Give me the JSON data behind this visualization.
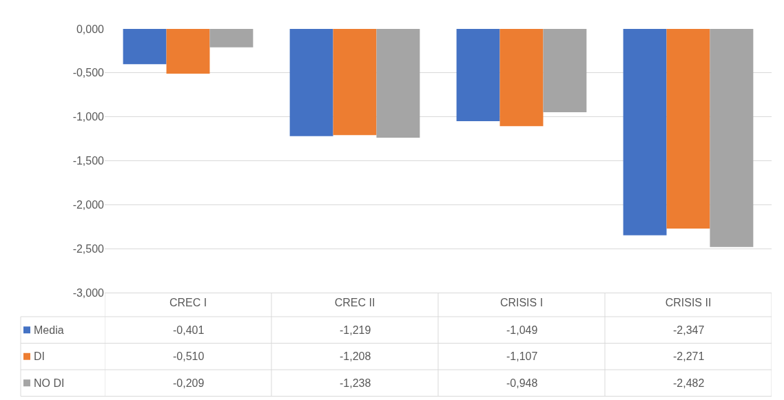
{
  "chart_data": {
    "type": "bar",
    "categories": [
      "CREC I",
      "CREC II",
      "CRISIS I",
      "CRISIS II"
    ],
    "series": [
      {
        "name": "Media",
        "color": "#4472c4",
        "values": [
          -0.401,
          -1.219,
          -1.049,
          -2.347
        ],
        "value_labels": [
          "-0,401",
          "-1,219",
          "-1,049",
          "-2,347"
        ]
      },
      {
        "name": "DI",
        "color": "#ed7d31",
        "values": [
          -0.51,
          -1.208,
          -1.107,
          -2.271
        ],
        "value_labels": [
          "-0,510",
          "-1,208",
          "-1,107",
          "-2,271"
        ]
      },
      {
        "name": "NO DI",
        "color": "#a5a5a5",
        "values": [
          -0.209,
          -1.238,
          -0.948,
          -2.482
        ],
        "value_labels": [
          "-0,209",
          "-1,238",
          "-0,948",
          "-2,482"
        ]
      }
    ],
    "ylim": [
      -3,
      0
    ],
    "yticks": [
      {
        "value": 0,
        "label": "0,000"
      },
      {
        "value": -0.5,
        "label": "-0,500"
      },
      {
        "value": -1,
        "label": "-1,000"
      },
      {
        "value": -1.5,
        "label": "-1,500"
      },
      {
        "value": -2,
        "label": "-2,000"
      },
      {
        "value": -2.5,
        "label": "-2,500"
      },
      {
        "value": -3,
        "label": "-3,000"
      }
    ],
    "grid": "y",
    "legend": "bottom"
  }
}
